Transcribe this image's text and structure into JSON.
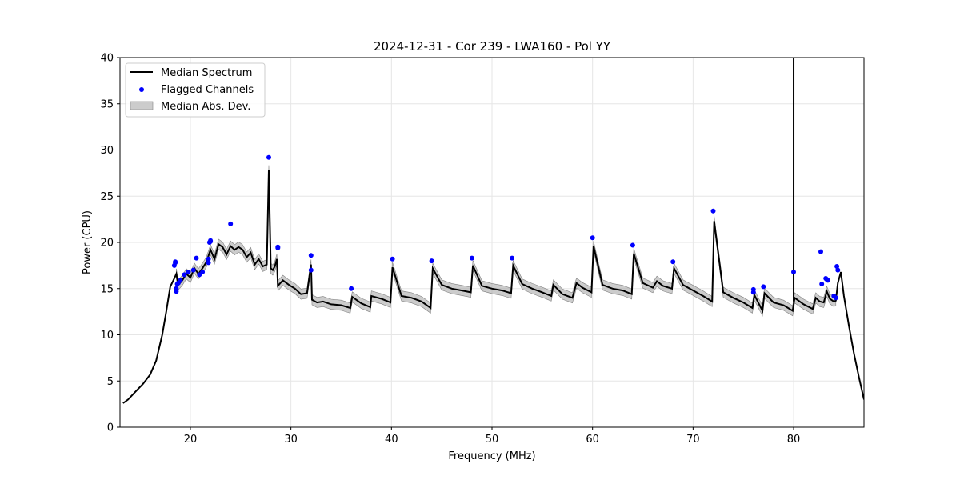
{
  "chart_data": {
    "type": "line",
    "title": "2024-12-31 - Cor 239 - LWA160 - Pol YY",
    "xlabel": "Frequency (MHz)",
    "ylabel": "Power (CPU)",
    "xlim": [
      13,
      87
    ],
    "ylim": [
      0,
      40
    ],
    "xticks": [
      20,
      30,
      40,
      50,
      60,
      70,
      80
    ],
    "yticks": [
      0,
      5,
      10,
      15,
      20,
      25,
      30,
      35,
      40
    ],
    "grid": true,
    "legend_position": "top-left",
    "legend": [
      {
        "label": "Median Spectrum",
        "kind": "line",
        "color": "#000000"
      },
      {
        "label": "Flagged Channels",
        "kind": "point",
        "color": "#0000ff"
      },
      {
        "label": "Median Abs. Dev.",
        "kind": "band",
        "color": "#999999"
      }
    ],
    "series": [
      {
        "name": "Median Spectrum",
        "x": [
          13.3,
          13.8,
          14.5,
          15.3,
          16.0,
          16.6,
          17.2,
          17.6,
          18.0,
          18.4,
          18.6,
          18.8,
          19.2,
          19.6,
          20.0,
          20.4,
          20.8,
          21.2,
          21.6,
          22.0,
          22.4,
          22.8,
          23.2,
          23.6,
          24.0,
          24.4,
          24.8,
          25.2,
          25.6,
          26.0,
          26.4,
          26.8,
          27.2,
          27.6,
          27.8,
          28.0,
          28.2,
          28.4,
          28.6,
          28.7,
          29.2,
          29.8,
          30.4,
          31.0,
          31.6,
          32.0,
          32.1,
          32.6,
          33.2,
          34.0,
          35.0,
          35.9,
          36.1,
          37.0,
          37.9,
          38.0,
          39.0,
          39.9,
          40.1,
          41.0,
          42.0,
          43.0,
          43.9,
          44.1,
          45.0,
          46.0,
          47.0,
          47.9,
          48.1,
          49.0,
          50.0,
          51.0,
          51.9,
          52.1,
          53.0,
          54.0,
          55.0,
          55.9,
          56.1,
          57.0,
          58.0,
          58.4,
          59.0,
          59.9,
          60.1,
          61.0,
          62.0,
          63.0,
          63.9,
          64.1,
          65.0,
          66.0,
          66.4,
          67.0,
          67.9,
          68.1,
          69.0,
          70.0,
          71.0,
          71.9,
          72.1,
          73.0,
          74.0,
          75.0,
          75.9,
          76.1,
          76.9,
          77.1,
          78.0,
          79.0,
          79.9,
          80.1,
          81.0,
          81.9,
          82.2,
          82.6,
          83.0,
          83.3,
          83.6,
          84.0,
          84.2,
          84.4,
          84.7,
          85.0,
          85.5,
          86.0,
          86.5,
          87.0
        ],
        "y": [
          2.6,
          3.0,
          3.8,
          4.7,
          5.7,
          7.2,
          10.0,
          12.5,
          15.2,
          16.1,
          16.6,
          15.4,
          15.9,
          16.6,
          16.2,
          17.2,
          16.6,
          17.2,
          17.9,
          19.2,
          18.2,
          19.8,
          19.5,
          18.7,
          19.6,
          19.2,
          19.5,
          19.2,
          18.4,
          18.9,
          17.6,
          18.2,
          17.4,
          17.6,
          27.8,
          17.2,
          17.0,
          17.4,
          18.2,
          15.3,
          15.9,
          15.4,
          15.0,
          14.4,
          14.5,
          17.6,
          13.8,
          13.5,
          13.6,
          13.3,
          13.2,
          12.9,
          14.1,
          13.4,
          13.0,
          14.2,
          13.9,
          13.5,
          17.3,
          14.2,
          14.0,
          13.6,
          12.9,
          17.2,
          15.4,
          15.0,
          14.8,
          14.6,
          17.5,
          15.3,
          15.0,
          14.8,
          14.5,
          17.5,
          15.5,
          15.0,
          14.6,
          14.2,
          15.4,
          14.4,
          14.0,
          15.6,
          15.1,
          14.6,
          19.6,
          15.4,
          15.0,
          14.8,
          14.4,
          18.8,
          15.6,
          15.1,
          15.8,
          15.3,
          15.0,
          17.2,
          15.4,
          14.8,
          14.2,
          13.6,
          22.3,
          14.6,
          14.0,
          13.5,
          12.9,
          14.3,
          12.6,
          14.5,
          13.5,
          13.2,
          12.6,
          14.0,
          13.3,
          12.8,
          14.0,
          13.6,
          13.5,
          14.7,
          13.9,
          13.6,
          13.7,
          15.6,
          16.8,
          14.2,
          11.0,
          8.0,
          5.4,
          3.0
        ]
      },
      {
        "name": "Flagged Channels",
        "x": [
          18.4,
          18.5,
          18.5,
          18.6,
          18.6,
          18.7,
          18.8,
          19.0,
          19.4,
          19.8,
          20.3,
          20.6,
          20.9,
          21.2,
          21.8,
          21.8,
          21.9,
          22.0,
          22.0,
          24.0,
          27.8,
          28.7,
          28.7,
          32.0,
          32.0,
          36.0,
          40.1,
          44.0,
          48.0,
          52.0,
          60.0,
          64.0,
          68.0,
          72.0,
          76.0,
          76.0,
          77.0,
          80.0,
          82.7,
          82.8,
          83.2,
          83.3,
          83.4,
          84.0,
          84.2,
          84.3,
          84.4
        ],
        "y": [
          17.5,
          17.8,
          17.9,
          15.0,
          14.7,
          15.5,
          15.6,
          15.9,
          16.5,
          16.8,
          17.0,
          18.3,
          16.5,
          16.8,
          17.8,
          18.2,
          20.0,
          20.1,
          20.2,
          22.0,
          29.2,
          19.4,
          19.5,
          18.6,
          17.0,
          15.0,
          18.2,
          18.0,
          18.3,
          18.3,
          20.5,
          19.7,
          17.9,
          23.4,
          14.9,
          14.6,
          15.2,
          16.8,
          19.0,
          15.5,
          16.1,
          16.0,
          15.9,
          14.2,
          14.0,
          17.4,
          17.0
        ]
      },
      {
        "name": "Median Abs. Dev.",
        "dev": 0.55
      }
    ],
    "spike": {
      "x": 80.0,
      "y_top": 40
    }
  }
}
